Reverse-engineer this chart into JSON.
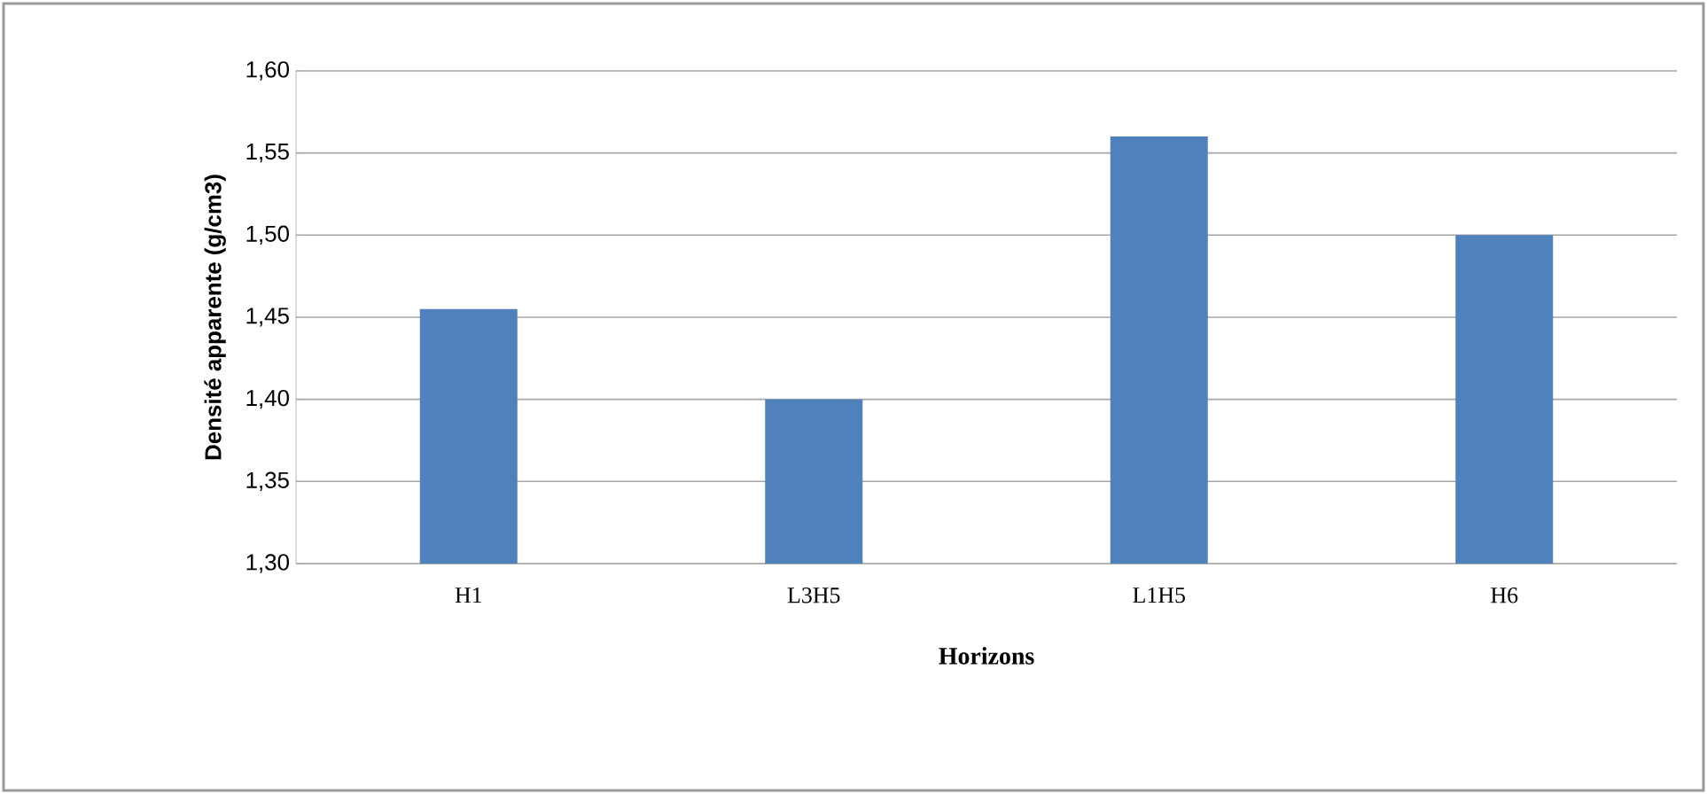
{
  "chart_data": {
    "type": "bar",
    "xlabel": "Horizons",
    "ylabel": "Densité apparente (g/cm3)",
    "categories": [
      "H1",
      "L3H5",
      "L1H5",
      "H6"
    ],
    "values": [
      1.455,
      1.4,
      1.56,
      1.5
    ],
    "color": "#4f81bd",
    "ylim": [
      1.3,
      1.6
    ],
    "yticks": [
      {
        "value": 1.3,
        "label": "1,30"
      },
      {
        "value": 1.35,
        "label": "1,35"
      },
      {
        "value": 1.4,
        "label": "1,40"
      },
      {
        "value": 1.45,
        "label": "1,45"
      },
      {
        "value": 1.5,
        "label": "1,50"
      },
      {
        "value": 1.55,
        "label": "1,55"
      },
      {
        "value": 1.6,
        "label": "1,60"
      }
    ],
    "grid": "y"
  }
}
